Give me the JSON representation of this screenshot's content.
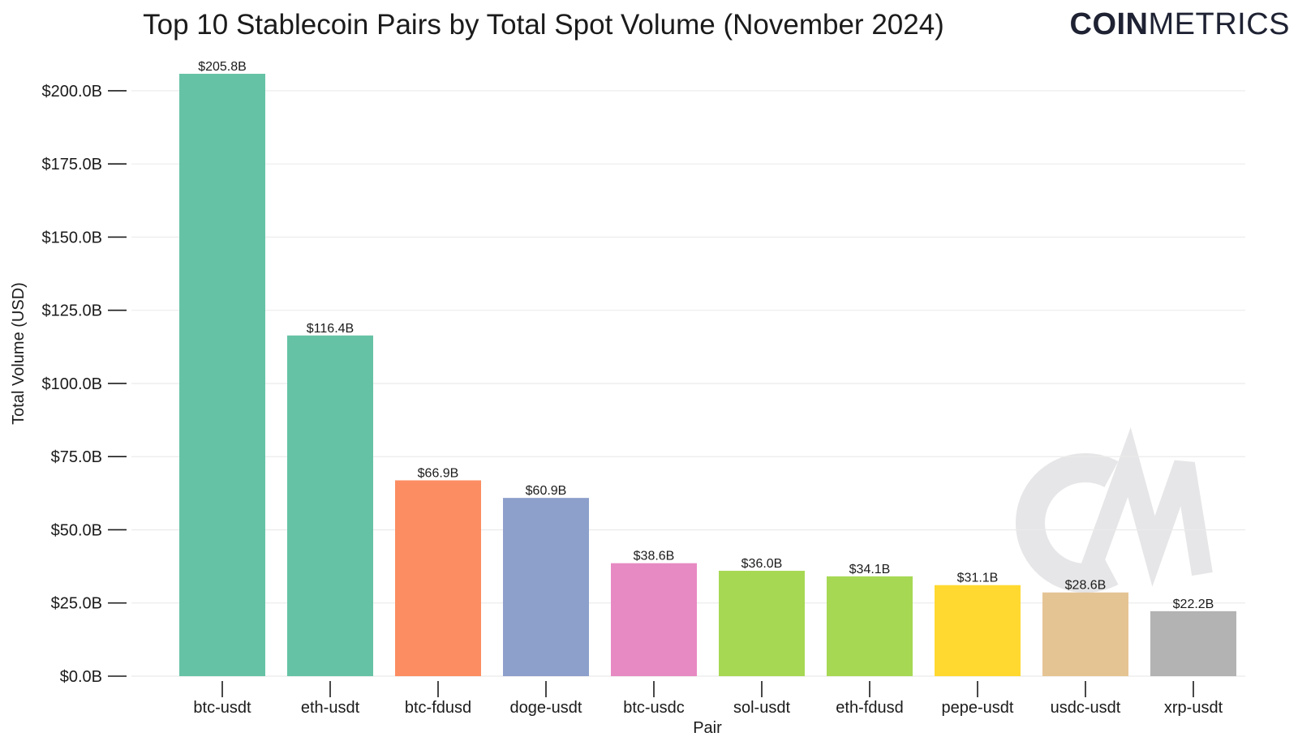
{
  "chart_data": {
    "type": "bar",
    "title": "Top 10 Stablecoin Pairs by Total Spot Volume (November 2024)",
    "xlabel": "Pair",
    "ylabel": "Total Volume (USD)",
    "categories": [
      "btc-usdt",
      "eth-usdt",
      "btc-fdusd",
      "doge-usdt",
      "btc-usdc",
      "sol-usdt",
      "eth-fdusd",
      "pepe-usdt",
      "usdc-usdt",
      "xrp-usdt"
    ],
    "values": [
      205.8,
      116.4,
      66.9,
      60.9,
      38.6,
      36.0,
      34.1,
      31.1,
      28.6,
      22.2
    ],
    "value_unit": "billion USD",
    "data_labels": [
      "$205.8B",
      "$116.4B",
      "$66.9B",
      "$60.9B",
      "$38.6B",
      "$36.0B",
      "$34.1B",
      "$31.1B",
      "$28.6B",
      "$22.2B"
    ],
    "bar_colors": [
      "#66c2a5",
      "#66c2a5",
      "#fc8d62",
      "#8da0cb",
      "#e78ac3",
      "#a6d854",
      "#a6d854",
      "#ffd92f",
      "#e5c494",
      "#b3b3b3"
    ],
    "ylim": [
      0,
      205.8
    ],
    "yticks": [
      0,
      25,
      50,
      75,
      100,
      125,
      150,
      175,
      200
    ],
    "ytick_labels": [
      "$0.0B",
      "$25.0B",
      "$50.0B",
      "$75.0B",
      "$100.0B",
      "$125.0B",
      "$150.0B",
      "$175.0B",
      "$200.0B"
    ],
    "grid": true,
    "legend": "none"
  },
  "brand": {
    "bold_part": "COIN",
    "light_part": "METRICS",
    "watermark": "CM",
    "text_color": "#1e2233",
    "watermark_color": "#e6e6e8"
  }
}
